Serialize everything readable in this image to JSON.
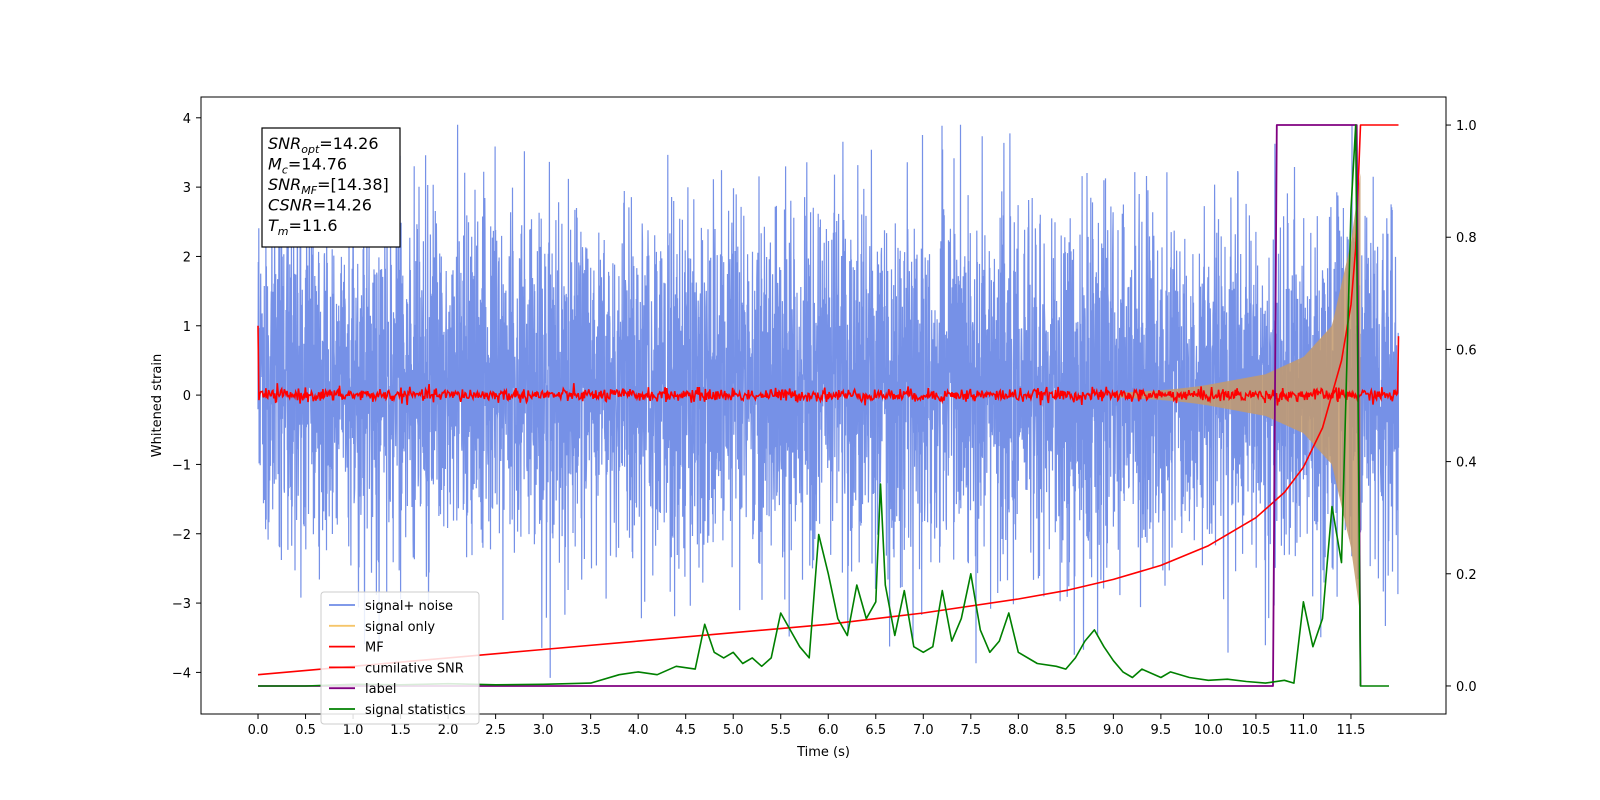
{
  "chart_data": {
    "type": "line",
    "xlabel": "Time (s)",
    "ylabel": "Whitened strain",
    "xlim": [
      -0.6,
      12.5
    ],
    "ylim": [
      -4.6,
      4.3
    ],
    "y2lim": [
      -0.05,
      1.05
    ],
    "x_ticks": [
      "0.0",
      "0.5",
      "1.0",
      "1.5",
      "2.0",
      "2.5",
      "3.0",
      "3.5",
      "4.0",
      "4.5",
      "5.0",
      "5.5",
      "6.0",
      "6.5",
      "7.0",
      "7.5",
      "8.0",
      "8.5",
      "9.0",
      "9.5",
      "10.0",
      "10.5",
      "11.0",
      "11.5"
    ],
    "y_ticks": [
      "4",
      "3",
      "2",
      "1",
      "0",
      "−1",
      "−2",
      "−3",
      "−4"
    ],
    "y2_ticks": [
      "1.0",
      "0.8",
      "0.6",
      "0.4",
      "0.2",
      "0.0"
    ],
    "annotation": {
      "lines": [
        {
          "sym": "SNR",
          "sub": "opt",
          "val": "=14.26"
        },
        {
          "sym": "M",
          "sub": "c",
          "val": "=14.76"
        },
        {
          "sym": "SNR",
          "sub": "MF",
          "val": "=[14.38]"
        },
        {
          "sym": "CSNR",
          "sub": "",
          "val": "=14.26"
        },
        {
          "sym": "T",
          "sub": "m",
          "val": "=11.6"
        }
      ]
    },
    "legend_position": "lower-left",
    "legend": [
      {
        "name": "signal+ noise",
        "color": "#6f8be6"
      },
      {
        "name": "signal only",
        "color": "#f5c56a"
      },
      {
        "name": "MF",
        "color": "#ff0000"
      },
      {
        "name": "cumilative SNR",
        "color": "#ff0000"
      },
      {
        "name": "label",
        "color": "#800080"
      },
      {
        "name": "signal statistics",
        "color": "#008000"
      }
    ],
    "series": [
      {
        "key": "signal_noise",
        "axis": "left",
        "color": "#6f8be6",
        "x_range": [
          0,
          12
        ],
        "envelope_p5_p95": [
          -1.9,
          2.2
        ],
        "extreme_max": 3.9,
        "extreme_min": -4.1
      },
      {
        "key": "signal_only",
        "axis": "left",
        "color": "#c49a6c",
        "x_range": [
          0,
          11.6
        ],
        "envelope": [
          [
            10.0,
            0.15
          ],
          [
            10.6,
            0.3
          ],
          [
            11.0,
            0.55
          ],
          [
            11.3,
            1.0
          ],
          [
            11.5,
            2.2
          ],
          [
            11.6,
            3.2
          ]
        ]
      },
      {
        "key": "mf",
        "axis": "left",
        "color": "#ff0000",
        "x_range": [
          0,
          12
        ],
        "baseline": 0.0,
        "noise_amp": 0.08,
        "start_value": 1.0,
        "end_value": 0.85
      },
      {
        "key": "cumilative_snr",
        "axis": "right",
        "color": "#ff0000",
        "x": [
          0.0,
          1.0,
          2.0,
          3.0,
          4.0,
          5.0,
          6.0,
          7.0,
          8.0,
          8.5,
          9.0,
          9.5,
          10.0,
          10.5,
          10.8,
          11.0,
          11.2,
          11.4,
          11.5,
          11.55,
          11.6,
          12.0
        ],
        "y": [
          0.02,
          0.035,
          0.05,
          0.065,
          0.08,
          0.095,
          0.11,
          0.13,
          0.155,
          0.17,
          0.19,
          0.215,
          0.25,
          0.3,
          0.345,
          0.39,
          0.46,
          0.58,
          0.68,
          0.78,
          1.0,
          1.0
        ]
      },
      {
        "key": "label",
        "axis": "right",
        "color": "#800080",
        "x": [
          0.0,
          10.68,
          10.72,
          11.56,
          11.6
        ],
        "y": [
          0.0,
          0.0,
          1.0,
          1.0,
          0.0
        ]
      },
      {
        "key": "signal_statistics",
        "axis": "right",
        "color": "#008000",
        "x": [
          0.0,
          0.5,
          1.0,
          1.5,
          2.0,
          2.5,
          3.0,
          3.5,
          3.8,
          4.0,
          4.2,
          4.4,
          4.6,
          4.7,
          4.8,
          4.9,
          5.0,
          5.1,
          5.2,
          5.3,
          5.4,
          5.5,
          5.6,
          5.7,
          5.8,
          5.9,
          6.0,
          6.1,
          6.2,
          6.3,
          6.4,
          6.5,
          6.55,
          6.6,
          6.7,
          6.8,
          6.9,
          7.0,
          7.1,
          7.2,
          7.3,
          7.4,
          7.5,
          7.6,
          7.7,
          7.8,
          7.9,
          8.0,
          8.2,
          8.4,
          8.5,
          8.6,
          8.7,
          8.8,
          8.9,
          9.0,
          9.1,
          9.2,
          9.3,
          9.5,
          9.6,
          9.8,
          10.0,
          10.2,
          10.4,
          10.6,
          10.8,
          10.9,
          11.0,
          11.1,
          11.2,
          11.3,
          11.4,
          11.5,
          11.55,
          11.6,
          11.7,
          11.9
        ],
        "y": [
          0.0,
          0.0,
          0.003,
          0.002,
          0.004,
          0.002,
          0.003,
          0.005,
          0.02,
          0.025,
          0.02,
          0.035,
          0.03,
          0.11,
          0.06,
          0.05,
          0.06,
          0.04,
          0.05,
          0.035,
          0.05,
          0.13,
          0.1,
          0.07,
          0.05,
          0.27,
          0.2,
          0.12,
          0.09,
          0.18,
          0.12,
          0.15,
          0.36,
          0.18,
          0.09,
          0.17,
          0.07,
          0.06,
          0.07,
          0.17,
          0.08,
          0.12,
          0.2,
          0.1,
          0.06,
          0.08,
          0.13,
          0.06,
          0.04,
          0.035,
          0.03,
          0.05,
          0.08,
          0.1,
          0.07,
          0.045,
          0.025,
          0.015,
          0.03,
          0.015,
          0.025,
          0.015,
          0.01,
          0.012,
          0.008,
          0.005,
          0.01,
          0.005,
          0.15,
          0.07,
          0.12,
          0.32,
          0.22,
          0.85,
          1.0,
          0.0,
          0.0,
          0.0
        ]
      }
    ]
  }
}
